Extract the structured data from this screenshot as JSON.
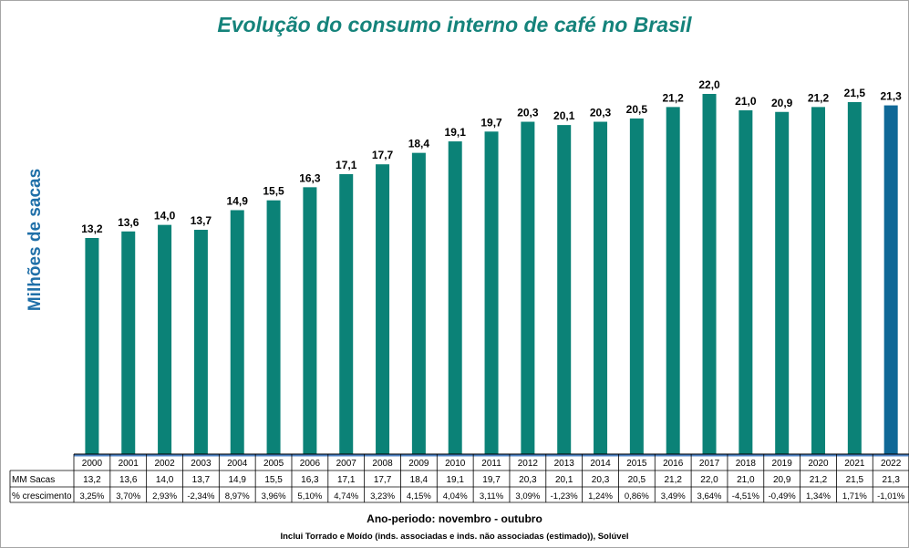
{
  "colors": {
    "bar": "#0b8277",
    "bar_highlight": "#0f6897",
    "title": "#15837b",
    "ylabel": "#1f6fa8"
  },
  "chart_data": {
    "type": "bar",
    "title": "Evolução do consumo interno de café no Brasil",
    "ylabel": "Milhões  de  sacas",
    "xlabel": "Ano-periodo: novembro - outubro",
    "note": "Inclui Torrado e Moído (inds. associadas  e inds. não associadas  (estimado)),  Solúvel",
    "ylim": [
      0,
      22
    ],
    "grid": false,
    "highlight_last": true,
    "categories": [
      "2000",
      "2001",
      "2002",
      "2003",
      "2004",
      "2005",
      "2006",
      "2007",
      "2008",
      "2009",
      "2010",
      "2011",
      "2012",
      "2013",
      "2014",
      "2015",
      "2016",
      "2017",
      "2018",
      "2019",
      "2020",
      "2021",
      "2022"
    ],
    "values": [
      13.2,
      13.6,
      14.0,
      13.7,
      14.9,
      15.5,
      16.3,
      17.1,
      17.7,
      18.4,
      19.1,
      19.7,
      20.3,
      20.1,
      20.3,
      20.5,
      21.2,
      22.0,
      21.0,
      20.9,
      21.2,
      21.5,
      21.3
    ],
    "value_labels": [
      "13,2",
      "13,6",
      "14,0",
      "13,7",
      "14,9",
      "15,5",
      "16,3",
      "17,1",
      "17,7",
      "18,4",
      "19,1",
      "19,7",
      "20,3",
      "20,1",
      "20,3",
      "20,5",
      "21,2",
      "22,0",
      "21,0",
      "20,9",
      "21,2",
      "21,5",
      "21,3"
    ],
    "table": {
      "row1_label": "MM Sacas",
      "row1_values": [
        "13,2",
        "13,6",
        "14,0",
        "13,7",
        "14,9",
        "15,5",
        "16,3",
        "17,1",
        "17,7",
        "18,4",
        "19,1",
        "19,7",
        "20,3",
        "20,1",
        "20,3",
        "20,5",
        "21,2",
        "22,0",
        "21,0",
        "20,9",
        "21,2",
        "21,5",
        "21,3"
      ],
      "row2_label": "% crescimento",
      "row2_values": [
        "3,25%",
        "3,70%",
        "2,93%",
        "-2,34%",
        "8,97%",
        "3,96%",
        "5,10%",
        "4,74%",
        "3,23%",
        "4,15%",
        "4,04%",
        "3,11%",
        "3,09%",
        "-1,23%",
        "1,24%",
        "0,86%",
        "3,49%",
        "3,64%",
        "-4,51%",
        "-0,49%",
        "1,34%",
        "1,71%",
        "-1,01%"
      ]
    }
  }
}
